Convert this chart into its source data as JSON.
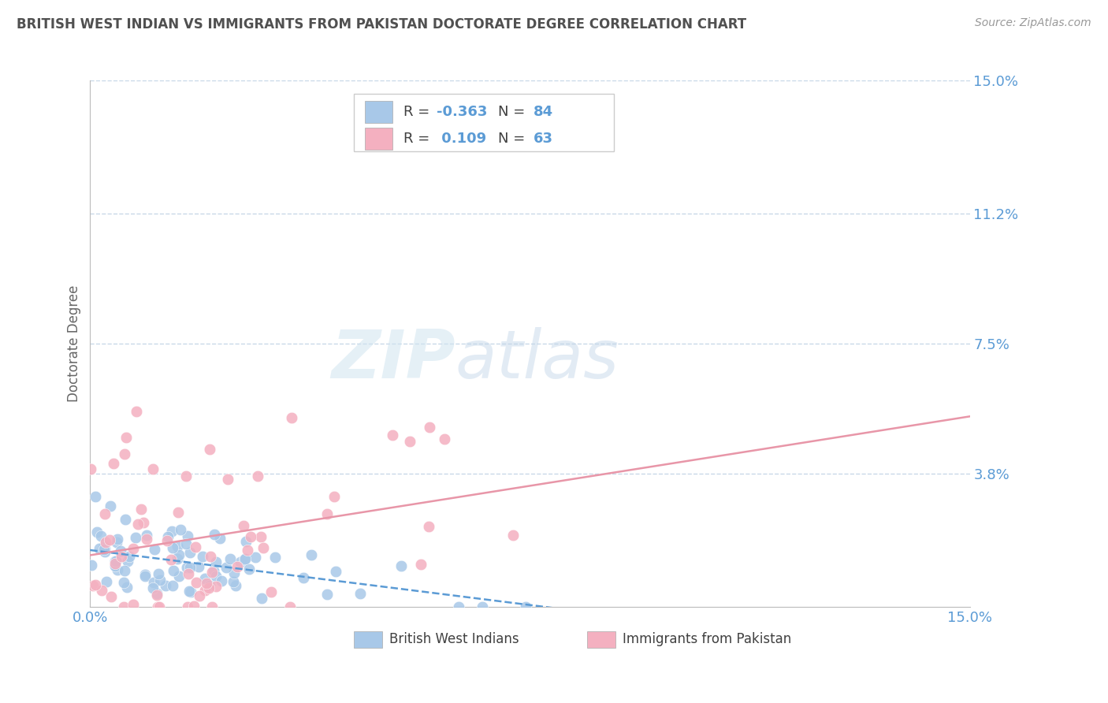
{
  "title": "BRITISH WEST INDIAN VS IMMIGRANTS FROM PAKISTAN DOCTORATE DEGREE CORRELATION CHART",
  "source_text": "Source: ZipAtlas.com",
  "ylabel": "Doctorate Degree",
  "watermark_zip": "ZIP",
  "watermark_atlas": "atlas",
  "xmin": 0.0,
  "xmax": 0.15,
  "ymin": 0.0,
  "ymax": 0.15,
  "series1": {
    "name": "British West Indians",
    "color": "#a8c8e8",
    "R": -0.363,
    "N": 84,
    "line_color": "#5b9bd5",
    "line_style": "--"
  },
  "series2": {
    "name": "Immigrants from Pakistan",
    "color": "#f4b0c0",
    "R": 0.109,
    "N": 63,
    "line_color": "#f4b0c0",
    "line_style": "-"
  },
  "bg_color": "#ffffff",
  "grid_color": "#c8d8e8",
  "title_color": "#505050",
  "tick_label_color": "#5b9bd5",
  "ytick_vals": [
    0.038,
    0.075,
    0.112,
    0.15
  ],
  "ytick_labels": [
    "3.8%",
    "7.5%",
    "11.2%",
    "15.0%"
  ],
  "seed1": 12,
  "seed2": 77
}
